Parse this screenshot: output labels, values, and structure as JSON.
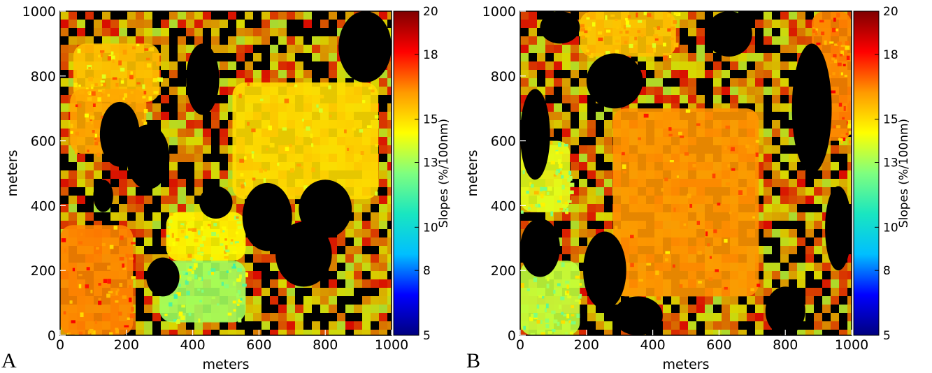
{
  "figure": {
    "panel_a_letter": "A",
    "panel_b_letter": "B"
  },
  "chart_data": [
    {
      "type": "heatmap",
      "panel": "A",
      "xlabel": "meters",
      "ylabel": "meters",
      "xlim": [
        0,
        1000
      ],
      "ylim": [
        0,
        1000
      ],
      "xticks": [
        0,
        200,
        400,
        600,
        800,
        1000
      ],
      "yticks": [
        0,
        200,
        400,
        600,
        800,
        1000
      ],
      "colorbar": {
        "label": "Slopes (%/100nm)",
        "range": [
          5,
          20
        ],
        "ticks": [
          5,
          8,
          10,
          13,
          15,
          18,
          20
        ],
        "colormap": [
          "#00007f",
          "#0000ff",
          "#00bfff",
          "#19e6c0",
          "#7fff7f",
          "#ffff00",
          "#ff9900",
          "#ff0000",
          "#7f0000"
        ]
      },
      "no_data_color": "#000000",
      "shadow_regions": [
        {
          "x": [
            120,
            240
          ],
          "y": [
            520,
            720
          ]
        },
        {
          "x": [
            200,
            330
          ],
          "y": [
            450,
            650
          ]
        },
        {
          "x": [
            380,
            480
          ],
          "y": [
            680,
            900
          ]
        },
        {
          "x": [
            550,
            700
          ],
          "y": [
            260,
            470
          ]
        },
        {
          "x": [
            650,
            820
          ],
          "y": [
            150,
            350
          ]
        },
        {
          "x": [
            720,
            880
          ],
          "y": [
            300,
            480
          ]
        },
        {
          "x": [
            420,
            520
          ],
          "y": [
            360,
            460
          ]
        },
        {
          "x": [
            840,
            1000
          ],
          "y": [
            780,
            1000
          ]
        },
        {
          "x": [
            260,
            360
          ],
          "y": [
            120,
            240
          ]
        },
        {
          "x": [
            100,
            160
          ],
          "y": [
            380,
            480
          ]
        }
      ],
      "bright_regions": [
        {
          "x": [
            0,
            220
          ],
          "y": [
            0,
            340
          ],
          "value": 16.5
        },
        {
          "x": [
            300,
            560
          ],
          "y": [
            40,
            230
          ],
          "value": 13
        },
        {
          "x": [
            40,
            300
          ],
          "y": [
            720,
            900
          ],
          "value": 15.5
        },
        {
          "x": [
            520,
            960
          ],
          "y": [
            420,
            780
          ],
          "value": 15
        },
        {
          "x": [
            30,
            260
          ],
          "y": [
            560,
            760
          ],
          "value": 16
        },
        {
          "x": [
            320,
            560
          ],
          "y": [
            230,
            380
          ],
          "value": 14.5
        }
      ]
    },
    {
      "type": "heatmap",
      "panel": "B",
      "xlabel": "meters",
      "ylabel": "meters",
      "xlim": [
        0,
        1000
      ],
      "ylim": [
        0,
        1000
      ],
      "xticks": [
        0,
        200,
        400,
        600,
        800,
        1000
      ],
      "yticks": [
        0,
        200,
        400,
        600,
        800,
        1000
      ],
      "colorbar": {
        "label": "Slopes (%/100nm)",
        "range": [
          5,
          20
        ],
        "ticks": [
          5,
          8,
          10,
          13,
          15,
          18,
          20
        ],
        "colormap": [
          "#00007f",
          "#0000ff",
          "#00bfff",
          "#19e6c0",
          "#7fff7f",
          "#ffff00",
          "#ff9900",
          "#ff0000",
          "#7f0000"
        ]
      },
      "no_data_color": "#000000",
      "shadow_regions": [
        {
          "x": [
            200,
            370
          ],
          "y": [
            700,
            870
          ]
        },
        {
          "x": [
            0,
            90
          ],
          "y": [
            480,
            760
          ]
        },
        {
          "x": [
            0,
            120
          ],
          "y": [
            180,
            360
          ]
        },
        {
          "x": [
            190,
            320
          ],
          "y": [
            80,
            320
          ]
        },
        {
          "x": [
            280,
            430
          ],
          "y": [
            0,
            120
          ]
        },
        {
          "x": [
            560,
            700
          ],
          "y": [
            860,
            1000
          ]
        },
        {
          "x": [
            820,
            940
          ],
          "y": [
            500,
            900
          ]
        },
        {
          "x": [
            920,
            1000
          ],
          "y": [
            200,
            460
          ]
        },
        {
          "x": [
            60,
            180
          ],
          "y": [
            900,
            1000
          ]
        },
        {
          "x": [
            740,
            860
          ],
          "y": [
            0,
            150
          ]
        }
      ],
      "bright_regions": [
        {
          "x": [
            280,
            720
          ],
          "y": [
            120,
            700
          ],
          "value": 16.3
        },
        {
          "x": [
            0,
            180
          ],
          "y": [
            0,
            230
          ],
          "value": 13.5
        },
        {
          "x": [
            180,
            470
          ],
          "y": [
            860,
            1000
          ],
          "value": 15.5
        },
        {
          "x": [
            880,
            1000
          ],
          "y": [
            600,
            1000
          ],
          "value": 16.5
        },
        {
          "x": [
            0,
            150
          ],
          "y": [
            380,
            600
          ],
          "value": 14
        }
      ]
    }
  ]
}
